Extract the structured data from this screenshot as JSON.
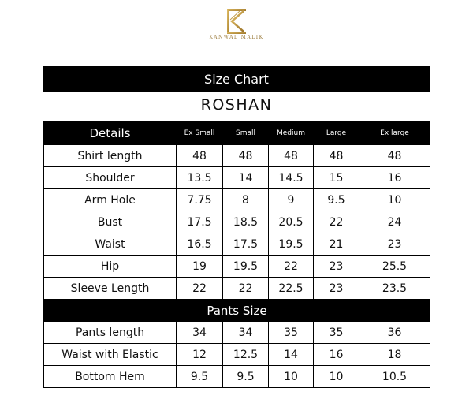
{
  "brand": {
    "name": "KANWAL MALIK",
    "logo_color": "#c9a24a"
  },
  "title": "Size Chart",
  "product": "ROSHAN",
  "table": {
    "headers": [
      "Details",
      "Ex Small",
      "Small",
      "Medium",
      "Large",
      "Ex large"
    ],
    "shirt_rows": [
      {
        "label": "Shirt length",
        "values": [
          "48",
          "48",
          "48",
          "48",
          "48"
        ]
      },
      {
        "label": "Shoulder",
        "values": [
          "13.5",
          "14",
          "14.5",
          "15",
          "16"
        ]
      },
      {
        "label": "Arm Hole",
        "values": [
          "7.75",
          "8",
          "9",
          "9.5",
          "10"
        ]
      },
      {
        "label": "Bust",
        "values": [
          "17.5",
          "18.5",
          "20.5",
          "22",
          "24"
        ]
      },
      {
        "label": "Waist",
        "values": [
          "16.5",
          "17.5",
          "19.5",
          "21",
          "23"
        ]
      },
      {
        "label": "Hip",
        "values": [
          "19",
          "19.5",
          "22",
          "23",
          "25.5"
        ]
      },
      {
        "label": "Sleeve Length",
        "values": [
          "22",
          "22",
          "22.5",
          "23",
          "23.5"
        ]
      }
    ],
    "pants_heading": "Pants Size",
    "pants_rows": [
      {
        "label": "Pants length",
        "values": [
          "34",
          "34",
          "35",
          "35",
          "36"
        ]
      },
      {
        "label": "Waist with Elastic",
        "values": [
          "12",
          "12.5",
          "14",
          "16",
          "18"
        ]
      },
      {
        "label": "Bottom Hem",
        "values": [
          "9.5",
          "9.5",
          "10",
          "10",
          "10.5"
        ]
      }
    ]
  }
}
